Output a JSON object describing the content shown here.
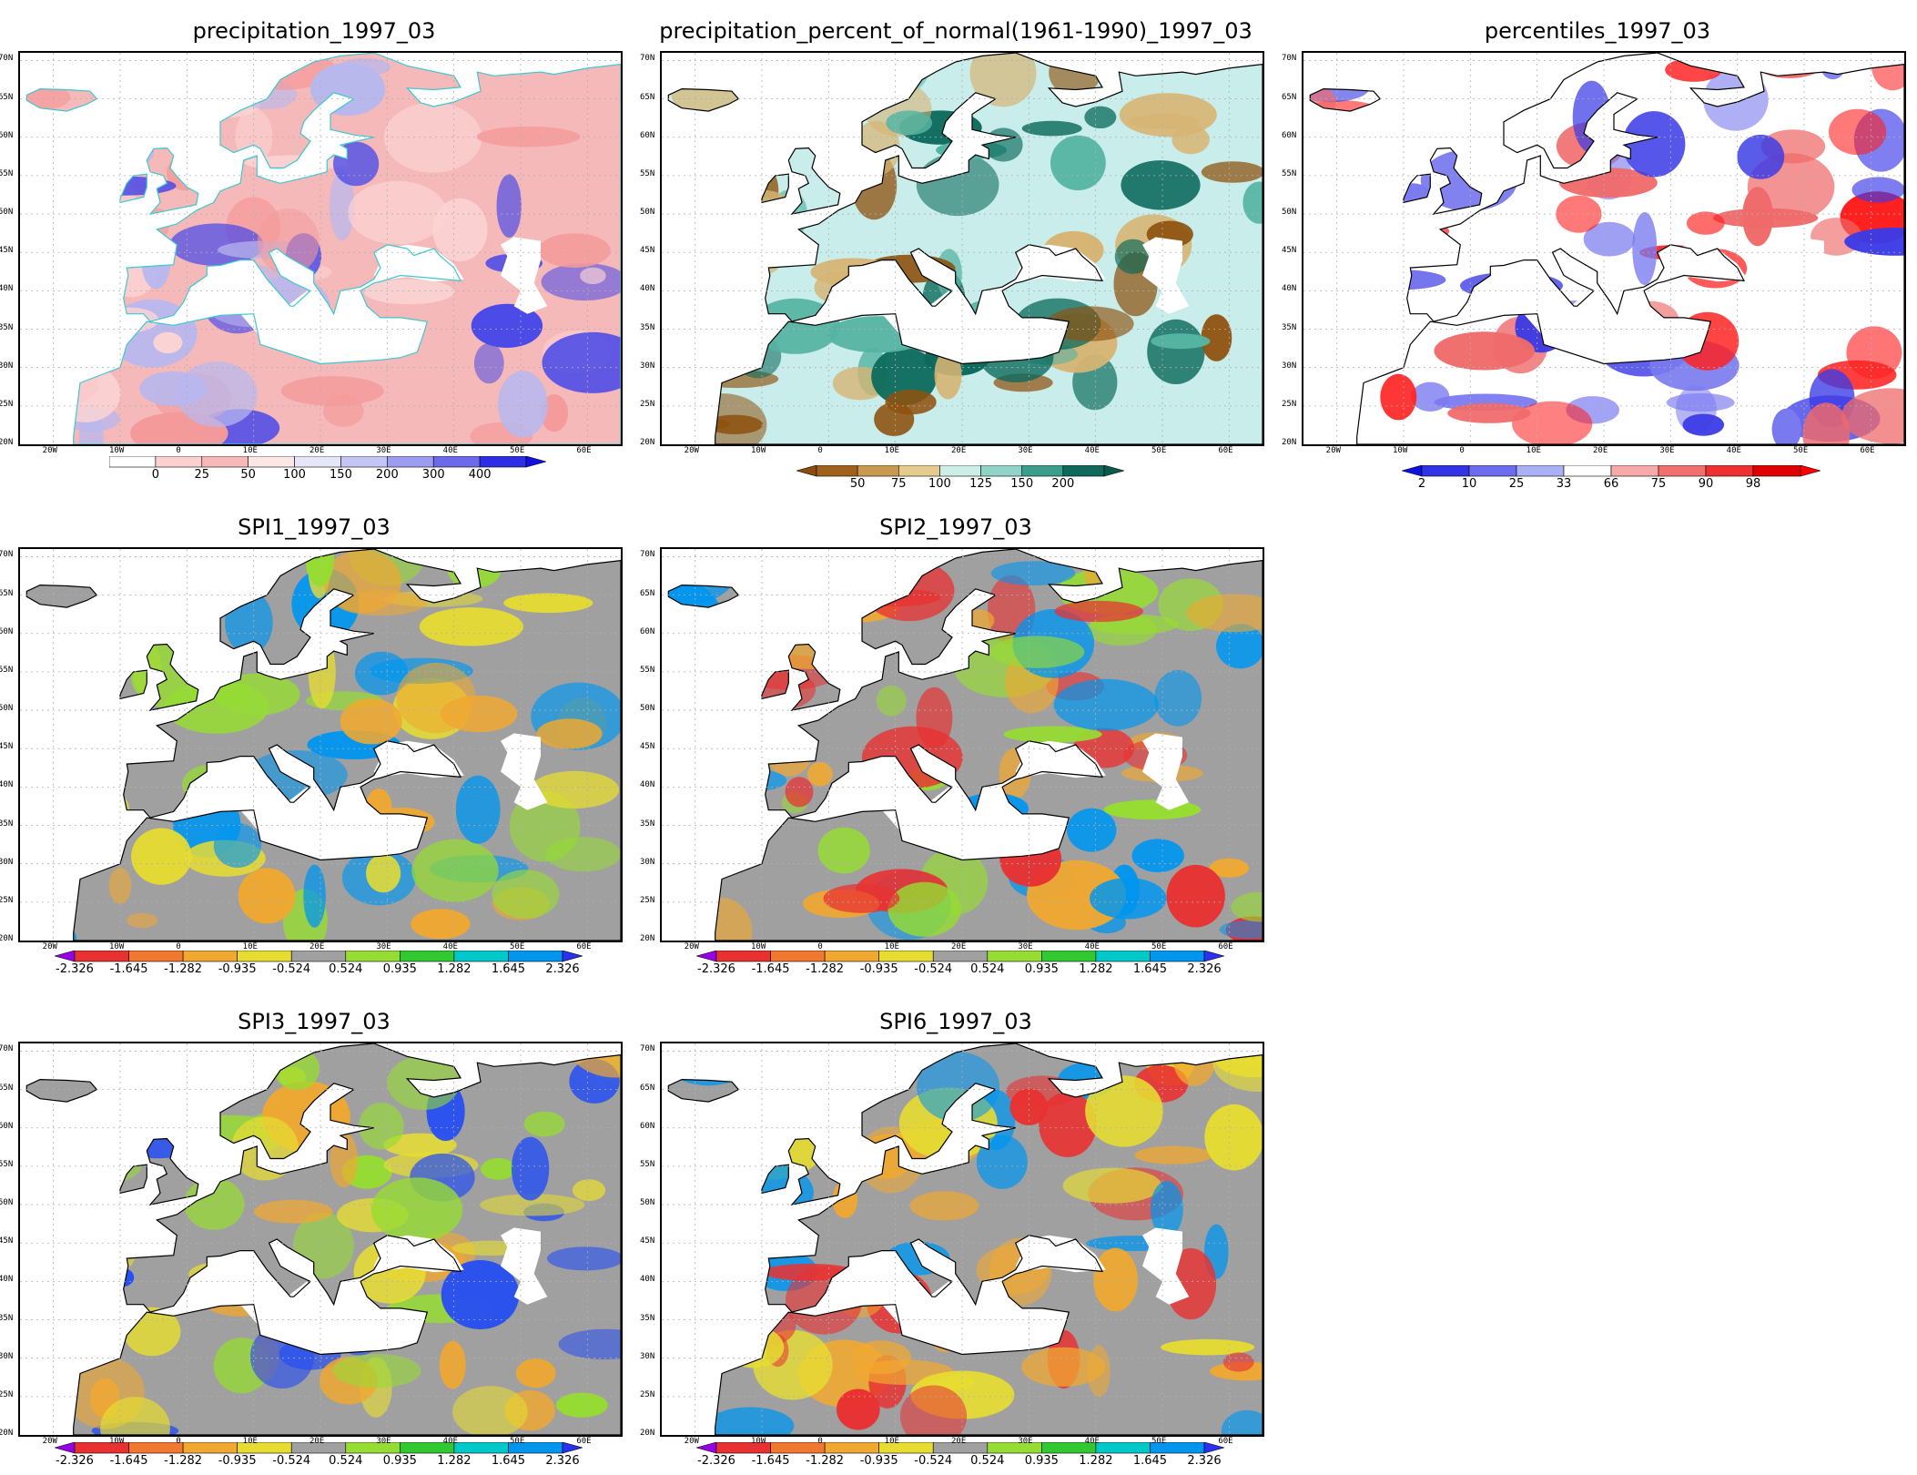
{
  "lat_labels": [
    "70N",
    "65N",
    "60N",
    "55N",
    "50N",
    "45N",
    "40N",
    "35N",
    "30N",
    "25N",
    "20N"
  ],
  "lon_labels": [
    "20W",
    "10W",
    "0",
    "10E",
    "20E",
    "30E",
    "40E",
    "50E",
    "60E"
  ],
  "panels": [
    {
      "id": "precip",
      "title": "precipitation_1997_03",
      "colorbar": {
        "colors": [
          "#ffffff",
          "#fbd0d0",
          "#f8b8b8",
          "#fce6e6",
          "#e6e6fb",
          "#c4c4f5",
          "#9c9cf0",
          "#6a6aeb",
          "#2d2de6"
        ],
        "labels": [
          "0",
          "25",
          "50",
          "100",
          "150",
          "200",
          "300",
          "400"
        ],
        "left_arrow": false,
        "right_arrow": true,
        "right_color": "#1010e0"
      },
      "palette": {
        "base": "#f6b9b9",
        "blobs": [
          "#f59a9a",
          "#fbd4d4",
          "#b8b8ee",
          "#4a4ae8"
        ],
        "coast": "#3cc8d0"
      }
    },
    {
      "id": "pct",
      "title": "precipitation_percent_of_normal(1961-1990)_1997_03",
      "colorbar": {
        "colors": [
          "#a0611c",
          "#c89a50",
          "#e6cc8c",
          "#cdeee6",
          "#8fd4c6",
          "#3a9e8a",
          "#0f6a5c"
        ],
        "labels": [
          "50",
          "75",
          "100",
          "125",
          "150",
          "200"
        ],
        "left_arrow": true,
        "left_color": "#8c4c10",
        "right_arrow": true,
        "right_color": "#0a5a4e"
      },
      "palette": {
        "base": "#c8edeb",
        "blobs": [
          "#8e520f",
          "#d7b472",
          "#55b4a2",
          "#0c6a5c"
        ],
        "coast": "#000000"
      }
    },
    {
      "id": "perc",
      "title": "percentiles_1997_03",
      "colorbar": {
        "colors": [
          "#3232e6",
          "#6c6cf0",
          "#aab0f5",
          "#ffffff",
          "#f8aaaa",
          "#f07070",
          "#f03030",
          "#e00000"
        ],
        "labels": [
          "2",
          "10",
          "25",
          "33",
          "66",
          "75",
          "90",
          "98"
        ],
        "left_arrow": true,
        "left_color": "#1010e0",
        "right_arrow": true,
        "right_color": "#ff0000"
      },
      "palette": {
        "base": "#ffffff",
        "blobs": [
          "#f06a6a",
          "#ff2020",
          "#7a7af0",
          "#3a3ae6"
        ],
        "coast": "#000000"
      }
    },
    {
      "id": "spi1",
      "title": "SPI1_1997_03",
      "colorbar": {
        "colors": [
          "#e83232",
          "#f07830",
          "#f0a830",
          "#e6dc32",
          "#a0a0a0",
          "#96dc32",
          "#32c832",
          "#00c8c8",
          "#0096f0"
        ],
        "labels": [
          "-2.326",
          "-1.645",
          "-1.282",
          "-0.935",
          "-0.524",
          "0.524",
          "0.935",
          "1.282",
          "1.645",
          "2.326"
        ],
        "left_arrow": true,
        "left_color": "#9600e6",
        "right_arrow": true,
        "right_color": "#2832f0"
      },
      "palette": {
        "base": "#a0a0a0",
        "blobs": [
          "#f0a830",
          "#e6dc32",
          "#96dc32",
          "#0096f0"
        ],
        "coast": "#000000"
      }
    },
    {
      "id": "spi2",
      "title": "SPI2_1997_03",
      "colorbar": {
        "colors": [
          "#e83232",
          "#f07830",
          "#f0a830",
          "#e6dc32",
          "#a0a0a0",
          "#96dc32",
          "#32c832",
          "#00c8c8",
          "#0096f0"
        ],
        "labels": [
          "-2.326",
          "-1.645",
          "-1.282",
          "-0.935",
          "-0.524",
          "0.524",
          "0.935",
          "1.282",
          "1.645",
          "2.326"
        ],
        "left_arrow": true,
        "left_color": "#9600e6",
        "right_arrow": true,
        "right_color": "#2832f0"
      },
      "palette": {
        "base": "#a0a0a0",
        "blobs": [
          "#f0a830",
          "#e83232",
          "#96dc32",
          "#0096f0"
        ],
        "coast": "#000000"
      }
    },
    {
      "id": "spi3",
      "title": "SPI3_1997_03",
      "colorbar": {
        "colors": [
          "#e83232",
          "#f07830",
          "#f0a830",
          "#e6dc32",
          "#a0a0a0",
          "#96dc32",
          "#32c832",
          "#00c8c8",
          "#0096f0"
        ],
        "labels": [
          "-2.326",
          "-1.645",
          "-1.282",
          "-0.935",
          "-0.524",
          "0.524",
          "0.935",
          "1.282",
          "1.645",
          "2.326"
        ],
        "left_arrow": true,
        "left_color": "#9600e6",
        "right_arrow": true,
        "right_color": "#2832f0"
      },
      "palette": {
        "base": "#a0a0a0",
        "blobs": [
          "#f0a830",
          "#e6dc32",
          "#96dc32",
          "#2850f0"
        ],
        "coast": "#000000"
      }
    },
    {
      "id": "spi6",
      "title": "SPI6_1997_03",
      "colorbar": {
        "colors": [
          "#e83232",
          "#f07830",
          "#f0a830",
          "#e6dc32",
          "#a0a0a0",
          "#96dc32",
          "#32c832",
          "#00c8c8",
          "#0096f0"
        ],
        "labels": [
          "-2.326",
          "-1.645",
          "-1.282",
          "-0.935",
          "-0.524",
          "0.524",
          "0.935",
          "1.282",
          "1.645",
          "2.326"
        ],
        "left_arrow": true,
        "left_color": "#9600e6",
        "right_arrow": true,
        "right_color": "#2832f0"
      },
      "palette": {
        "base": "#a0a0a0",
        "blobs": [
          "#f0a830",
          "#e6dc32",
          "#e83232",
          "#0096f0"
        ],
        "coast": "#000000"
      }
    }
  ]
}
